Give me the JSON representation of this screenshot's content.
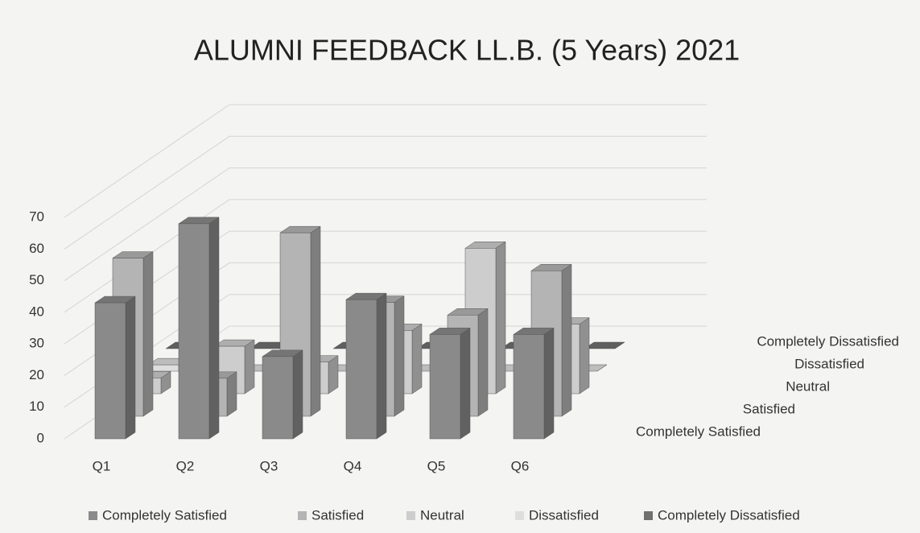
{
  "chart_data": {
    "type": "bar3d",
    "title": "ALUMNI FEEDBACK LL.B. (5 Years) 2021",
    "categories": [
      "Q1",
      "Q2",
      "Q3",
      "Q4",
      "Q5",
      "Q6"
    ],
    "series": [
      {
        "name": "Completely Satisfied",
        "color": "#8a8a8a",
        "values": [
          43,
          68,
          26,
          44,
          33,
          33
        ]
      },
      {
        "name": "Satisfied",
        "color": "#b4b4b4",
        "values": [
          50,
          12,
          58,
          36,
          32,
          46
        ]
      },
      {
        "name": "Neutral",
        "color": "#cdcdcd",
        "values": [
          5,
          15,
          10,
          20,
          46,
          22
        ]
      },
      {
        "name": "Dissatisfied",
        "color": "#dedede",
        "values": [
          2,
          0,
          0,
          0,
          0,
          0
        ]
      },
      {
        "name": "Completely Dissatisfied",
        "color": "#707070",
        "values": [
          0,
          0,
          0,
          0,
          0,
          0
        ]
      }
    ],
    "ylim": [
      0,
      70
    ],
    "yticks": [
      0,
      10,
      20,
      30,
      40,
      50,
      60,
      70
    ],
    "grid": true,
    "legend": "bottom"
  }
}
